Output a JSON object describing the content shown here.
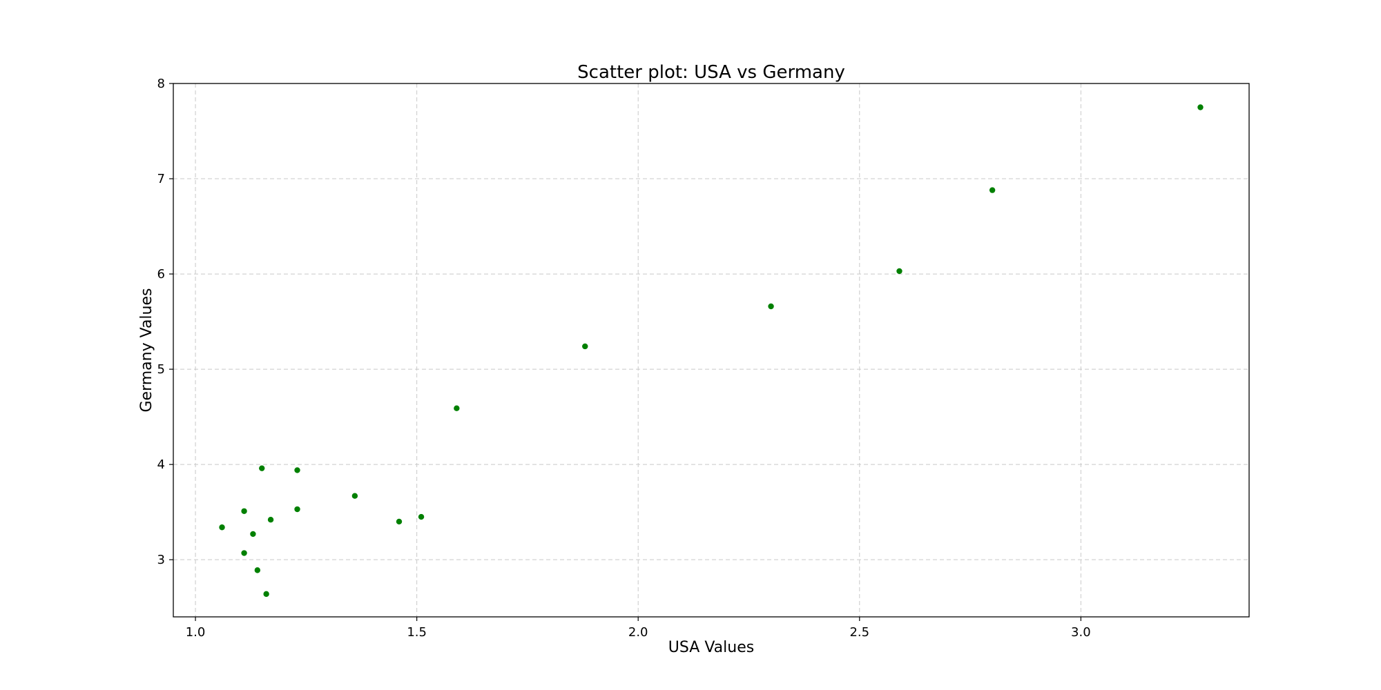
{
  "chart_data": {
    "type": "scatter",
    "title": "Scatter plot: USA vs Germany",
    "xlabel": "USA Values",
    "ylabel": "Germany Values",
    "xlim": [
      0.95,
      3.38
    ],
    "ylim": [
      2.4,
      8.0
    ],
    "xticks": [
      1.0,
      1.5,
      2.0,
      2.5,
      3.0
    ],
    "xtick_labels": [
      "1.0",
      "1.5",
      "2.0",
      "2.5",
      "3.0"
    ],
    "yticks": [
      3,
      4,
      5,
      6,
      7,
      8
    ],
    "ytick_labels": [
      "3",
      "4",
      "5",
      "6",
      "7",
      "8"
    ],
    "grid": true,
    "marker_color": "#008000",
    "points": [
      {
        "x": 1.06,
        "y": 3.34
      },
      {
        "x": 1.11,
        "y": 3.51
      },
      {
        "x": 1.11,
        "y": 3.07
      },
      {
        "x": 1.13,
        "y": 3.27
      },
      {
        "x": 1.14,
        "y": 2.89
      },
      {
        "x": 1.15,
        "y": 3.96
      },
      {
        "x": 1.16,
        "y": 2.64
      },
      {
        "x": 1.17,
        "y": 3.42
      },
      {
        "x": 1.23,
        "y": 3.94
      },
      {
        "x": 1.23,
        "y": 3.53
      },
      {
        "x": 1.36,
        "y": 3.67
      },
      {
        "x": 1.46,
        "y": 3.4
      },
      {
        "x": 1.51,
        "y": 3.45
      },
      {
        "x": 1.59,
        "y": 4.59
      },
      {
        "x": 1.88,
        "y": 5.24
      },
      {
        "x": 2.3,
        "y": 5.66
      },
      {
        "x": 2.59,
        "y": 6.03
      },
      {
        "x": 2.8,
        "y": 6.88
      },
      {
        "x": 3.27,
        "y": 7.75
      }
    ]
  }
}
